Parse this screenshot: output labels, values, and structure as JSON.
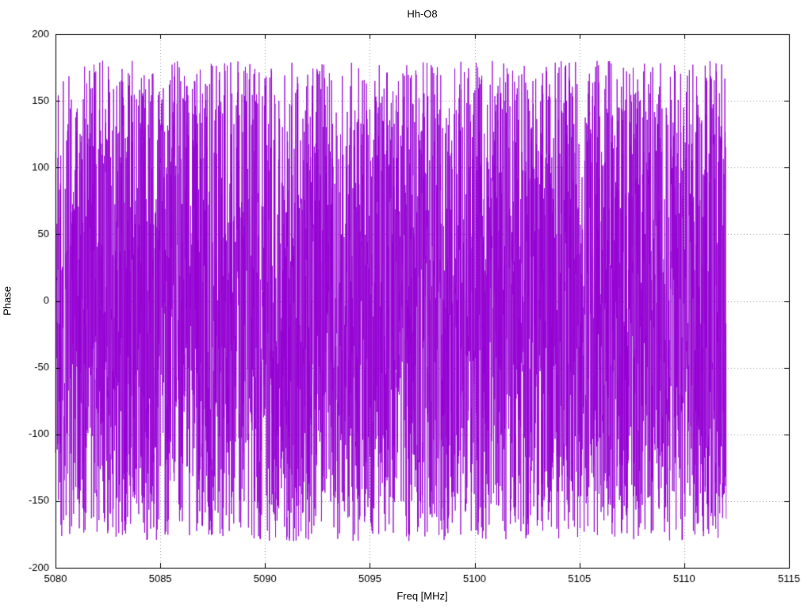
{
  "chart_data": {
    "type": "line",
    "title": "Hh-O8",
    "xlabel": "Freq [MHz]",
    "ylabel": "Phase",
    "xlim": [
      5080,
      5115
    ],
    "ylim": [
      -200,
      200
    ],
    "x_ticks": [
      5080,
      5085,
      5090,
      5095,
      5100,
      5105,
      5110,
      5115
    ],
    "y_ticks": [
      -200,
      -150,
      -100,
      -50,
      0,
      50,
      100,
      150,
      200
    ],
    "grid": true,
    "grid_style": "dotted",
    "grid_color": "#9a9a9a",
    "border_color": "#000000",
    "legend": "none",
    "series": [
      {
        "name": "phase",
        "color": "#9400d3",
        "x_start": 5080,
        "x_end": 5112,
        "points": 4200,
        "y_min": -180,
        "y_max": 180,
        "distribution": "uniform-random-phase-wrap",
        "seed": 1337
      }
    ]
  }
}
